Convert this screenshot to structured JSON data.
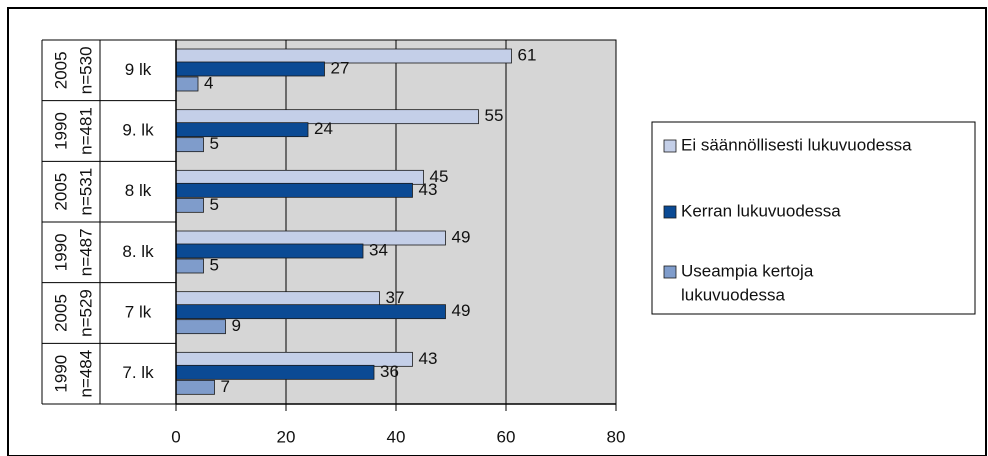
{
  "chart_data": {
    "type": "bar",
    "orientation": "horizontal",
    "categories": [
      {
        "year": "2005",
        "n": "n=530",
        "grade": "9 lk"
      },
      {
        "year": "1990",
        "n": "n=481",
        "grade": "9. lk"
      },
      {
        "year": "2005",
        "n": "n=531",
        "grade": "8 lk"
      },
      {
        "year": "1990",
        "n": "n=487",
        "grade": "8. lk"
      },
      {
        "year": "2005",
        "n": "n=529",
        "grade": "7 lk"
      },
      {
        "year": "1990",
        "n": "n=484",
        "grade": "7. lk"
      }
    ],
    "series": [
      {
        "name": "Ei säännöllisesti lukuvuodessa",
        "color": "#c4cfe8",
        "values": [
          61,
          55,
          45,
          49,
          37,
          43
        ]
      },
      {
        "name": "Kerran lukuvuodessa",
        "color": "#0b4a94",
        "values": [
          27,
          24,
          43,
          34,
          49,
          36
        ]
      },
      {
        "name": "Useampia kertoja lukuvuodessa",
        "legend_lines": [
          "Useampia kertoja",
          "lukuvuodessa"
        ],
        "color": "#7f9ccb",
        "values": [
          4,
          5,
          5,
          5,
          9,
          7
        ]
      }
    ],
    "xlim": [
      0,
      80
    ],
    "xticks": [
      "0",
      "20",
      "40",
      "60",
      "80"
    ],
    "grid": "vertical",
    "plot_background": "#d6d6d6",
    "legend_position": "right",
    "title": "",
    "xlabel": "",
    "ylabel": ""
  }
}
